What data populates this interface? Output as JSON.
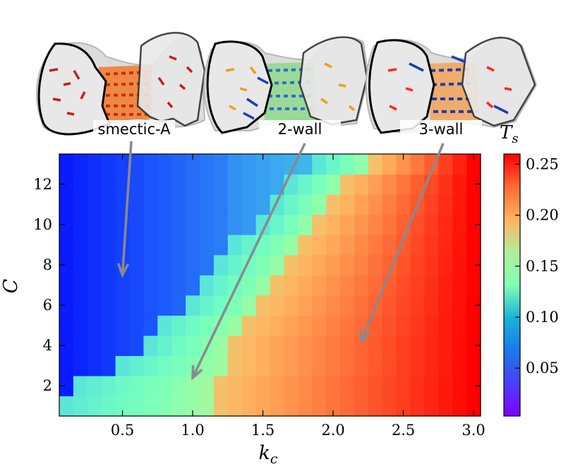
{
  "chart_data": {
    "type": "heatmap",
    "xlabel": "k_c",
    "ylabel": "C",
    "xlim": [
      0.05,
      3.05
    ],
    "ylim": [
      0.5,
      13.5
    ],
    "x_ticks": [
      0.5,
      1.0,
      1.5,
      2.0,
      2.5,
      3.0
    ],
    "x_tick_labels": [
      "0.5",
      "1.0",
      "1.5",
      "2.0",
      "2.5",
      "3.0"
    ],
    "y_ticks": [
      2,
      4,
      6,
      8,
      10,
      12
    ],
    "y_tick_labels": [
      "2",
      "4",
      "6",
      "8",
      "10",
      "12"
    ],
    "x_values": [
      0.1,
      0.2,
      0.3,
      0.4,
      0.5,
      0.6,
      0.7,
      0.8,
      0.9,
      1.0,
      1.1,
      1.2,
      1.3,
      1.4,
      1.5,
      1.6,
      1.7,
      1.8,
      1.9,
      2.0,
      2.1,
      2.2,
      2.3,
      2.4,
      2.5,
      2.6,
      2.7,
      2.8,
      2.9,
      3.0
    ],
    "y_values": [
      1,
      2,
      3,
      4,
      5,
      6,
      7,
      8,
      9,
      10,
      11,
      12,
      13
    ],
    "transition_kc_2wall": [
      0.1,
      0.2,
      0.5,
      0.7,
      0.8,
      1.0,
      1.1,
      1.2,
      1.3,
      1.5,
      1.6,
      1.7,
      1.9
    ],
    "transition_kc_3wall": [
      1.2,
      1.2,
      1.3,
      1.3,
      1.4,
      1.5,
      1.6,
      1.7,
      1.8,
      1.9,
      2.0,
      2.1,
      2.3
    ],
    "colormap": "rainbow",
    "colorbar": {
      "label": "T_s",
      "range": [
        0.003,
        0.26
      ],
      "ticks": [
        0.05,
        0.1,
        0.15,
        0.2,
        0.25
      ],
      "tick_labels": [
        "0.05",
        "0.10",
        "0.15",
        "0.20",
        "0.25"
      ]
    },
    "annotations": [
      {
        "text": "smectic-A",
        "arrow_to": [
          0.5,
          7.5
        ]
      },
      {
        "text": "2-wall",
        "arrow_to": [
          1.0,
          2.4
        ]
      },
      {
        "text": "3-wall",
        "arrow_to": [
          2.2,
          4.2
        ]
      }
    ]
  }
}
